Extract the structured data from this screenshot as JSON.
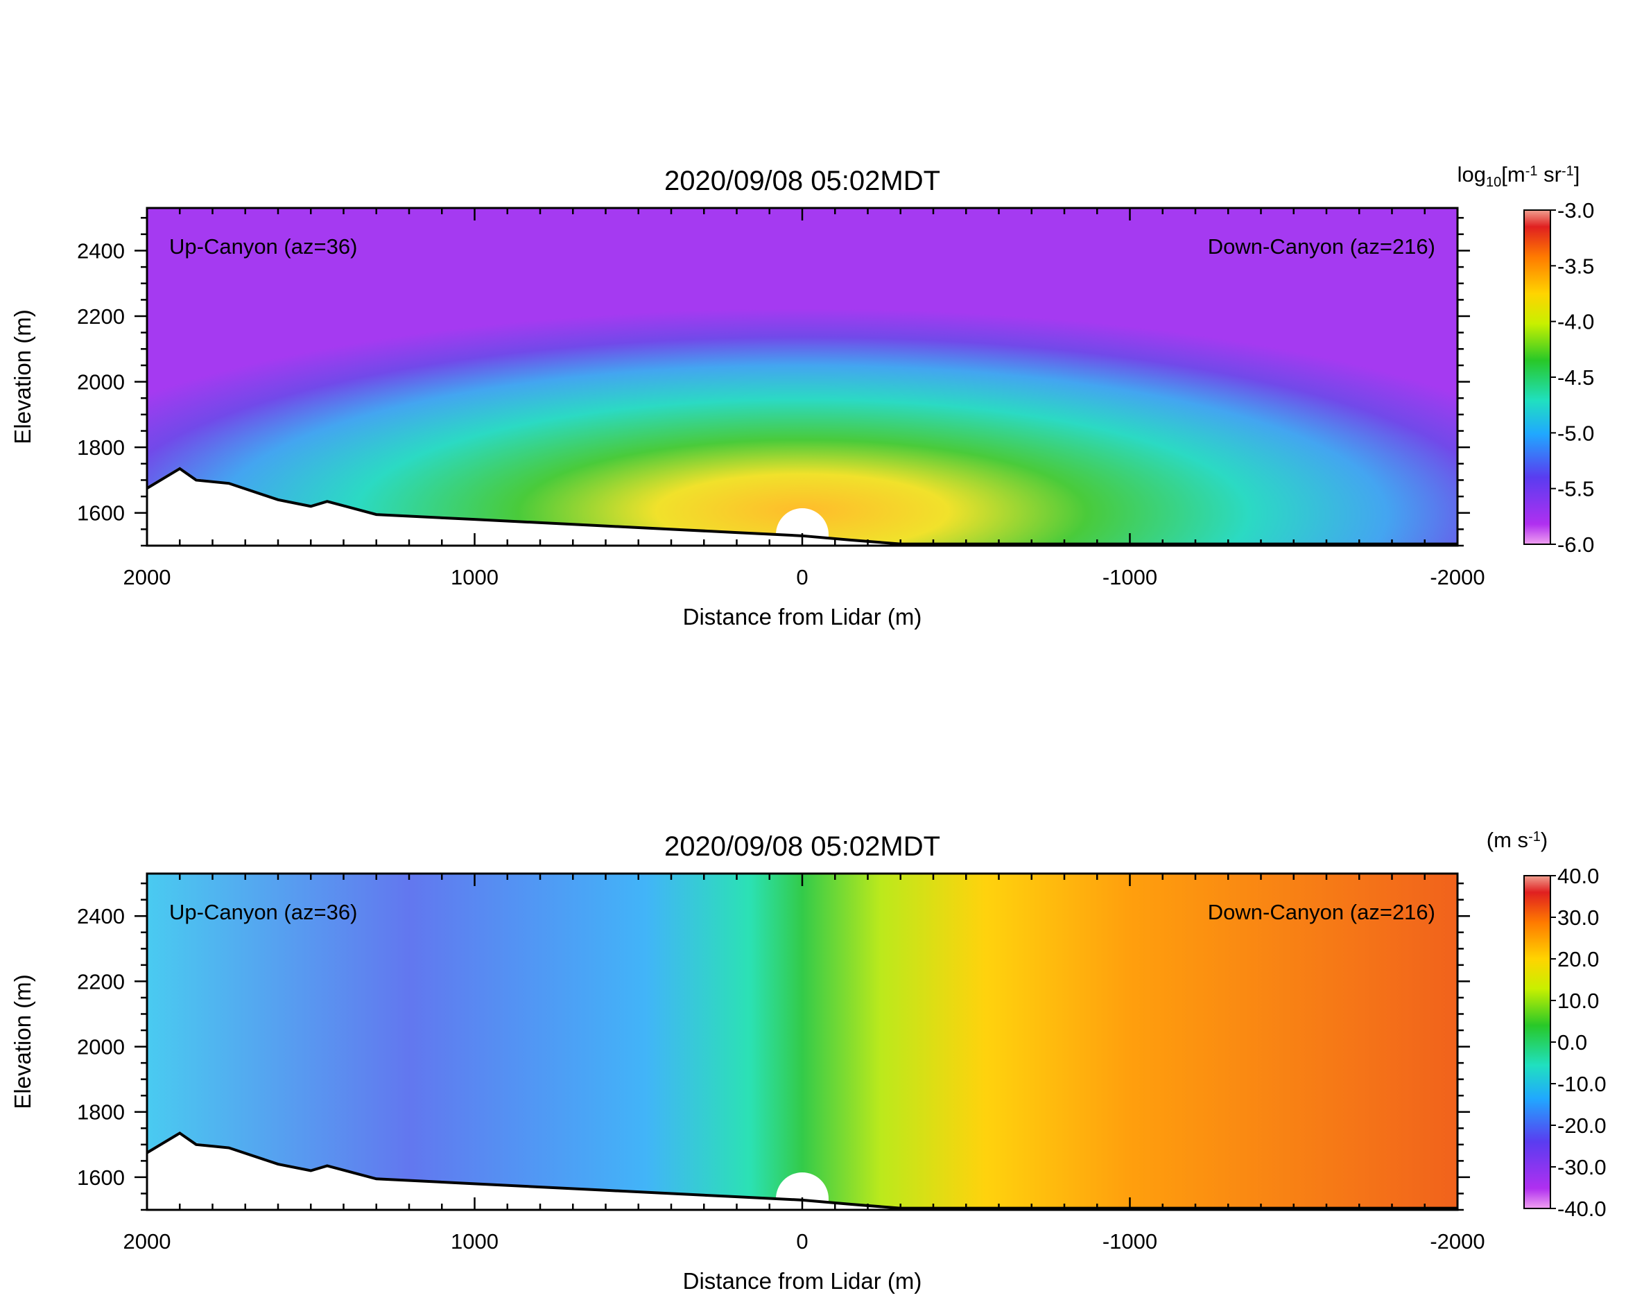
{
  "chart_data": [
    {
      "type": "heatmap",
      "title": "2020/09/08 05:02MDT",
      "xlabel": "Distance from Lidar (m)",
      "ylabel": "Elevation (m)",
      "xlim": [
        2000,
        -2000
      ],
      "ylim": [
        1500,
        2530
      ],
      "x_ticks": [
        "2000",
        "1000",
        "0",
        "-1000",
        "-2000"
      ],
      "y_ticks": [
        "1600",
        "1800",
        "2000",
        "2200",
        "2400"
      ],
      "annotations": {
        "left": "Up-Canyon (az=36)",
        "right": "Down-Canyon (az=216)"
      },
      "colorbar": {
        "unit_label": "log",
        "unit_sub": "10",
        "unit_rest": "[m",
        "unit_sup1": "-1",
        "unit_mid": " sr",
        "unit_sup2": "-1",
        "unit_end": "]",
        "range": [
          -6.0,
          -3.0
        ],
        "ticks": [
          "-3.0",
          "-3.5",
          "-4.0",
          "-4.5",
          "-5.0",
          "-5.5",
          "-6.0"
        ]
      },
      "field": "backscatter",
      "colors": {
        "low": "#a040ff",
        "mid": "#28c828",
        "high": "#f04020"
      }
    },
    {
      "type": "heatmap",
      "title": "2020/09/08 05:02MDT",
      "xlabel": "Distance from Lidar (m)",
      "ylabel": "Elevation (m)",
      "xlim": [
        2000,
        -2000
      ],
      "ylim": [
        1500,
        2530
      ],
      "x_ticks": [
        "2000",
        "1000",
        "0",
        "-1000",
        "-2000"
      ],
      "y_ticks": [
        "1600",
        "1800",
        "2000",
        "2200",
        "2400"
      ],
      "annotations": {
        "left": "Up-Canyon (az=36)",
        "right": "Down-Canyon (az=216)"
      },
      "colorbar": {
        "unit_label": "(m s",
        "unit_sup1": "-1",
        "unit_end": ")",
        "range": [
          -40.0,
          40.0
        ],
        "ticks": [
          "40.0",
          "30.0",
          "20.0",
          "10.0",
          "0.0",
          "-10.0",
          "-20.0",
          "-30.0",
          "-40.0"
        ]
      },
      "field": "radial_velocity",
      "colors": {
        "low": "#8c28ff",
        "mid": "#28c828",
        "high": "#f05010"
      }
    }
  ]
}
